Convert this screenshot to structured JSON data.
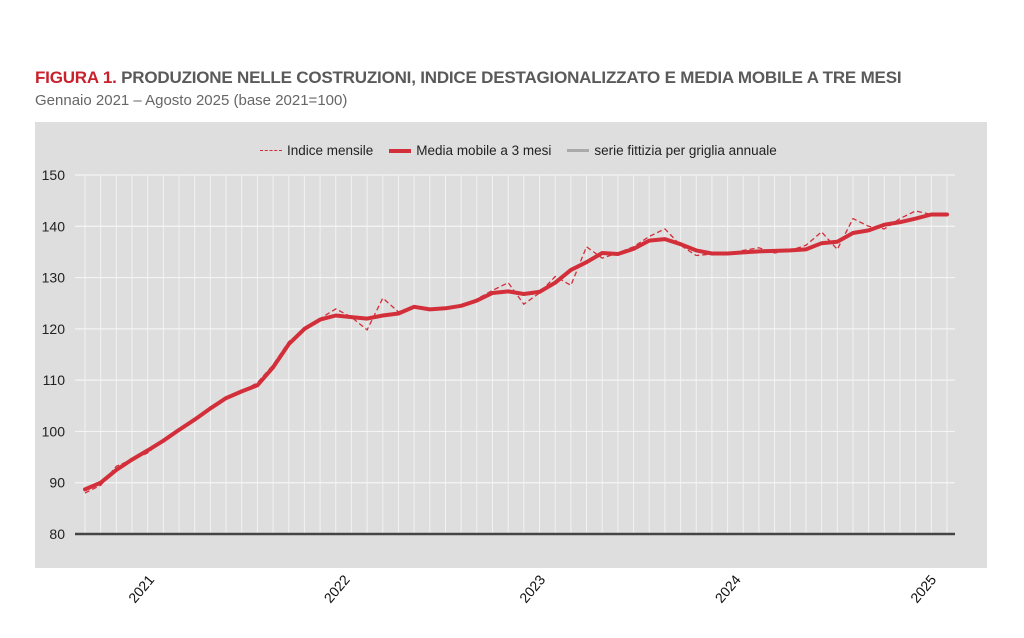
{
  "title_prefix": "FIGURA 1.",
  "title": "PRODUZIONE NELLE COSTRUZIONI, INDICE DESTAGIONALIZZATO E MEDIA MOBILE A TRE MESI",
  "subtitle": "Gennaio 2021 – Agosto 2025 (base 2021=100)",
  "colors": {
    "accent": "#c9202c",
    "series": "#d32f3a",
    "grid_series": "#aaaaaa",
    "background": "#dedede"
  },
  "chart_data": {
    "type": "line",
    "title": "PRODUZIONE NELLE COSTRUZIONI, INDICE DESTAGIONALIZZATO E MEDIA MOBILE A TRE MESI",
    "subtitle": "Gennaio 2021 – Agosto 2025 (base 2021=100)",
    "x_start": "2021-01",
    "x_end": "2025-08",
    "x_tick_labels": [
      "2021",
      "2022",
      "2023",
      "2024",
      "2025"
    ],
    "ylim": [
      80,
      150
    ],
    "y_ticks": [
      80,
      90,
      100,
      110,
      120,
      130,
      140,
      150
    ],
    "grid": true,
    "legend": "top-center",
    "series": [
      {
        "name": "Indice mensile",
        "style": "dashed",
        "values": [
          88.0,
          89.5,
          93.2,
          94.5,
          95.8,
          98.5,
          100.3,
          102.3,
          104.8,
          106.3,
          107.8,
          109.5,
          113.0,
          117.5,
          120.0,
          122.0,
          123.9,
          122.3,
          119.8,
          126.0,
          123.3,
          124.5,
          123.8,
          124.0,
          124.4,
          125.8,
          127.5,
          129.0,
          124.8,
          127.0,
          130.2,
          128.5,
          136.0,
          133.8,
          134.8,
          136.0,
          138.0,
          139.5,
          136.3,
          134.3,
          134.6,
          134.5,
          135.3,
          135.8,
          134.8,
          135.3,
          136.3,
          138.9,
          135.5,
          141.5,
          140.0,
          139.5,
          141.5,
          143.0,
          142.3,
          142.2
        ]
      },
      {
        "name": "Media mobile a 3 mesi",
        "style": "solid",
        "values": [
          88.7,
          90.0,
          92.5,
          94.5,
          96.3,
          98.2,
          100.3,
          102.3,
          104.5,
          106.5,
          107.8,
          109.0,
          112.5,
          117.0,
          120.0,
          121.8,
          122.6,
          122.3,
          122.0,
          122.6,
          123.0,
          124.3,
          123.8,
          124.0,
          124.5,
          125.5,
          127.0,
          127.3,
          126.8,
          127.2,
          129.0,
          131.5,
          133.0,
          134.8,
          134.6,
          135.6,
          137.2,
          137.5,
          136.5,
          135.3,
          134.7,
          134.7,
          134.9,
          135.1,
          135.2,
          135.3,
          135.5,
          136.7,
          137.0,
          138.7,
          139.2,
          140.3,
          140.8,
          141.5,
          142.3,
          142.3
        ]
      },
      {
        "name": "serie fittizia per griglia annuale",
        "style": "solid"
      }
    ]
  }
}
